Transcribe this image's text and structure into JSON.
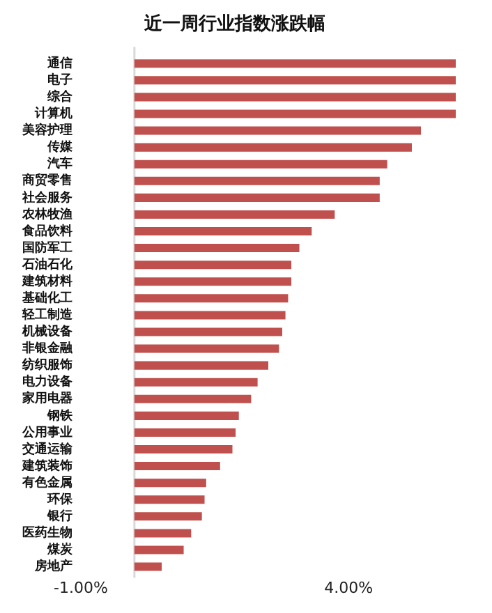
{
  "chart_data": {
    "type": "bar",
    "orientation": "horizontal",
    "title": "近一周行业指数涨跌幅",
    "categories": [
      "通信",
      "电子",
      "综合",
      "计算机",
      "美容护理",
      "传媒",
      "汽车",
      "商贸零售",
      "社会服务",
      "农林牧渔",
      "食品饮料",
      "国防军工",
      "石油石化",
      "建筑材料",
      "基础化工",
      "轻工制造",
      "机械设备",
      "非银金融",
      "纺织服饰",
      "电力设备",
      "家用电器",
      "钢铁",
      "公用事业",
      "交通运输",
      "建筑装饰",
      "有色金属",
      "环保",
      "银行",
      "医药生物",
      "煤炭",
      "房地产"
    ],
    "values": [
      6.0,
      6.0,
      6.0,
      6.0,
      5.35,
      5.18,
      4.72,
      4.58,
      4.58,
      3.74,
      3.31,
      3.08,
      2.93,
      2.93,
      2.87,
      2.82,
      2.76,
      2.7,
      2.5,
      2.3,
      2.18,
      1.95,
      1.89,
      1.83,
      1.6,
      1.34,
      1.31,
      1.26,
      1.06,
      0.92,
      0.51
    ],
    "color": "#c0504d",
    "xlim": [
      -1,
      6
    ],
    "xticks": [
      {
        "value": -1,
        "label": "-1.00%"
      },
      {
        "value": 4,
        "label": "4.00%"
      }
    ],
    "ref_lines": [
      {
        "axis": "x",
        "value": 0,
        "color": "#d9d9d9"
      }
    ],
    "grid": false,
    "legend": false
  }
}
